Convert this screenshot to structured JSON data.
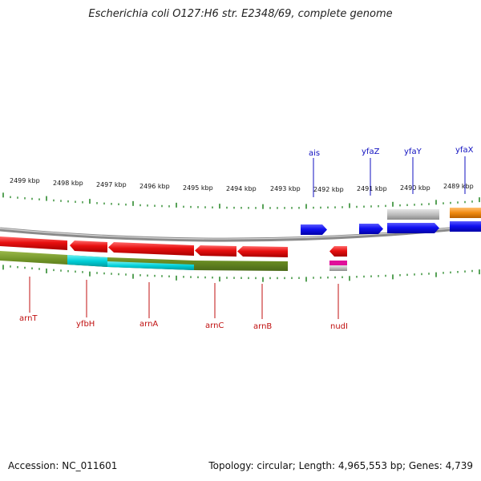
{
  "title": "Escherichia coli O127:H6 str. E2348/69, complete genome",
  "accession": "Accession: NC_011601",
  "summary": "Topology: circular; Length: 4,965,553 bp; Genes: 4,739",
  "colors": {
    "backbone": "#8a8a8a",
    "tick": "#2e8b2e",
    "forward_gene": "#1010f0",
    "reverse_gene": "#e81010",
    "label_top": "#1010c0",
    "label_bottom": "#c01010",
    "olive": "#6b8e23",
    "cyan": "#00d0d8",
    "grey": "#bdbdbd",
    "orange": "#f08a10",
    "magenta": "#e0109a"
  },
  "scale_labels": [
    "2499 kbp",
    "2498 kbp",
    "2497 kbp",
    "2496 kbp",
    "2495 kbp",
    "2494 kbp",
    "2493 kbp",
    "2492 kbp",
    "2491 kbp",
    "2490 kbp",
    "2489 kbp"
  ],
  "genes_top": [
    "ais",
    "yfaZ",
    "yfaY",
    "yfaX"
  ],
  "genes_bottom": [
    "arnT",
    "yfbH",
    "arnA",
    "arnC",
    "arnB",
    "nudI"
  ]
}
